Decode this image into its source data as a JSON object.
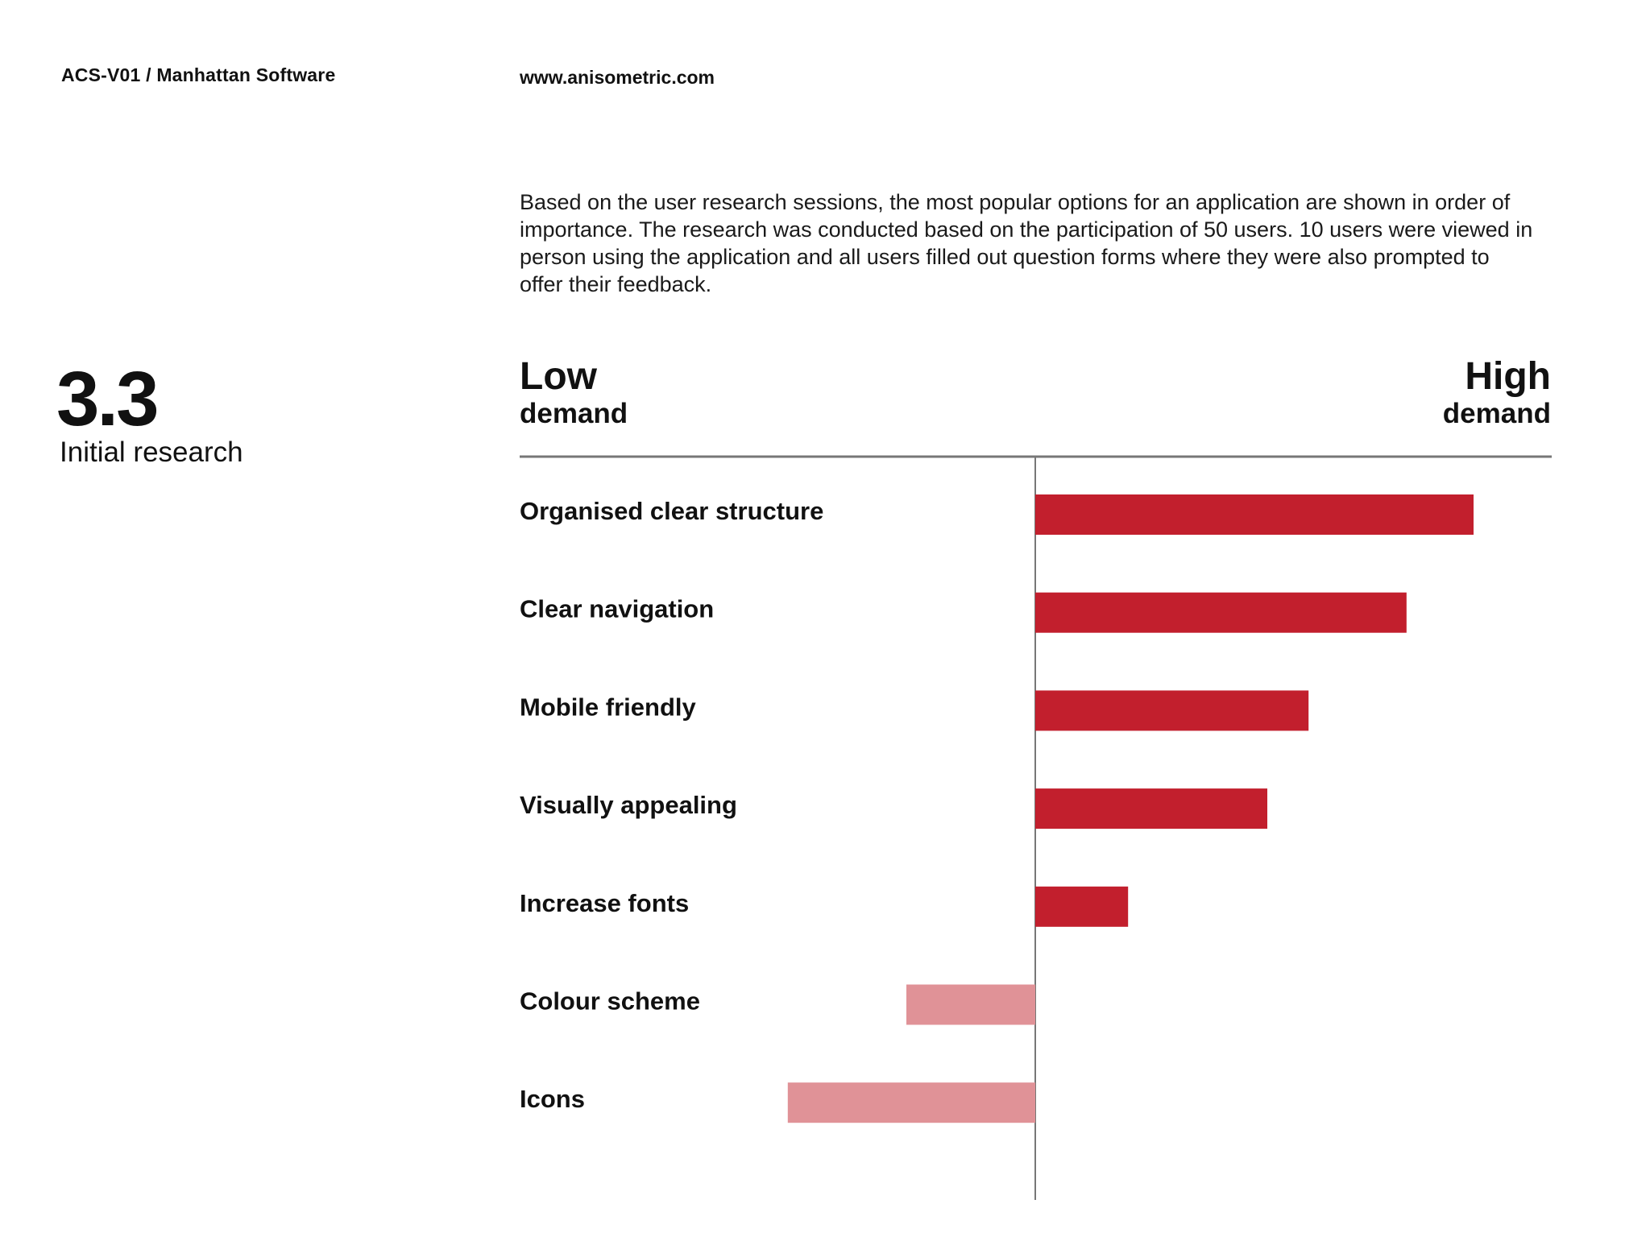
{
  "header": {
    "doc_ref": "ACS-V01 / Manhattan Software",
    "url": "www.anisometric.com"
  },
  "section": {
    "number": "3.3",
    "title": "Initial research"
  },
  "intro_text": "Based on the user research sessions, the most popular options for an application are shown in order of importance. The research was conducted based on the participation of 50 users. 10 users were viewed in person using the application and all users filled out question forms where they were also prompted to offer their feedback.",
  "colors": {
    "accent": "#c21f2d",
    "negative": "#e09297",
    "axis": "#777777",
    "text": "#111111"
  },
  "chart_data": {
    "type": "bar",
    "orientation": "horizontal",
    "left_label": {
      "main": "Low",
      "sub": "demand"
    },
    "right_label": {
      "main": "High",
      "sub": "demand"
    },
    "xlim": [
      -100,
      100
    ],
    "categories": [
      "Organised clear structure",
      "Clear navigation",
      "Mobile friendly",
      "Visually appealing",
      "Increase fonts",
      "Colour scheme",
      "Icons"
    ],
    "values": [
      85,
      72,
      53,
      45,
      18,
      -25,
      -48
    ]
  }
}
